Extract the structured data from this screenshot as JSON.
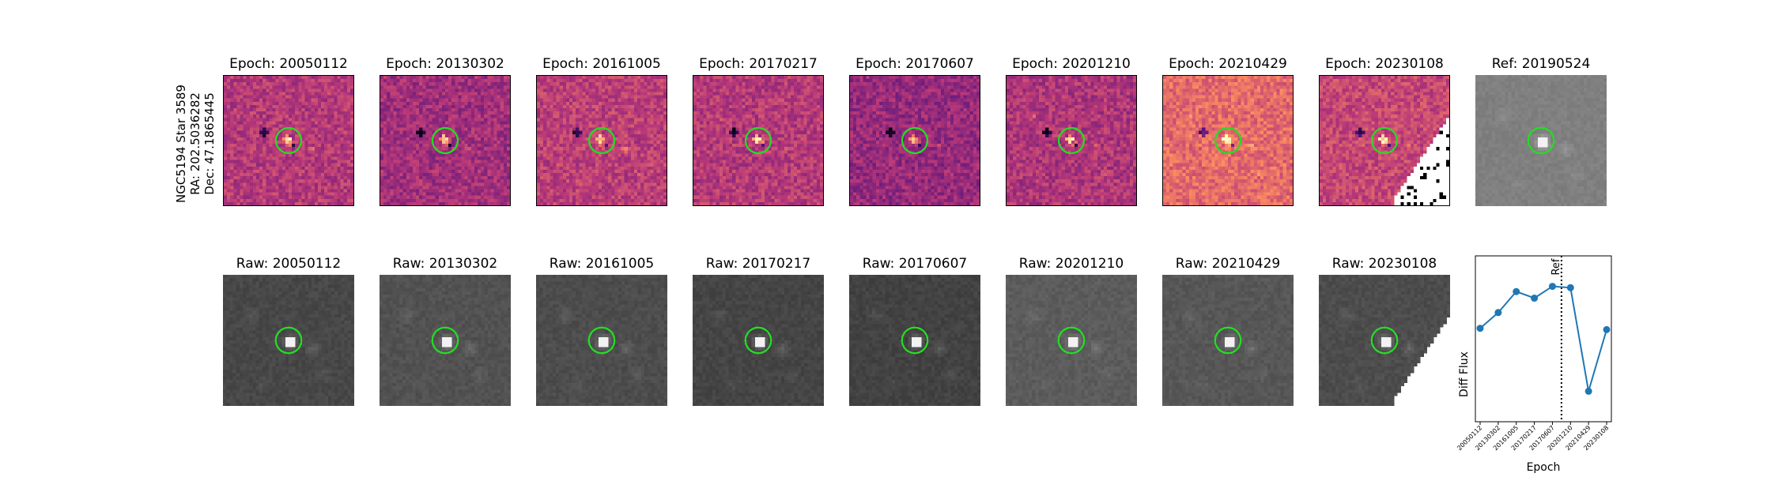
{
  "star_label": {
    "line1": "NGC5194 Star 3589",
    "line2": "RA: 202.5036282",
    "line3": "Dec: 47.1865445"
  },
  "diff_panels": [
    {
      "title": "Epoch: 20050112"
    },
    {
      "title": "Epoch: 20130302"
    },
    {
      "title": "Epoch: 20161005"
    },
    {
      "title": "Epoch: 20170217"
    },
    {
      "title": "Epoch: 20170607"
    },
    {
      "title": "Epoch: 20201210"
    },
    {
      "title": "Epoch: 20210429"
    },
    {
      "title": "Epoch: 20230108"
    }
  ],
  "ref_panel": {
    "title": "Ref: 20190524"
  },
  "raw_panels": [
    {
      "title": "Raw: 20050112"
    },
    {
      "title": "Raw: 20130302"
    },
    {
      "title": "Raw: 20161005"
    },
    {
      "title": "Raw: 20170217"
    },
    {
      "title": "Raw: 20170607"
    },
    {
      "title": "Raw: 20201210"
    },
    {
      "title": "Raw: 20210429"
    },
    {
      "title": "Raw: 20230108"
    }
  ],
  "colors": {
    "series": "#1f77b4",
    "marker_circle": "#22dd22",
    "diff_colormap": "magma",
    "raw_colormap": "gray"
  },
  "chart_data": {
    "type": "line",
    "xlabel": "Epoch",
    "ylabel": "Diff Flux",
    "x": [
      "20050112",
      "20130302",
      "20161005",
      "20170217",
      "20170607",
      "20201210",
      "20210429",
      "20230108"
    ],
    "y": [
      0.58,
      0.7,
      0.86,
      0.81,
      0.9,
      0.89,
      0.1,
      0.57
    ],
    "ylim": [
      0,
      1
    ],
    "yticks_shown": false,
    "vline": {
      "position": "between 20170607 and 20201210",
      "style": "dotted",
      "color": "#000000",
      "label": "Ref"
    },
    "grid": false
  }
}
